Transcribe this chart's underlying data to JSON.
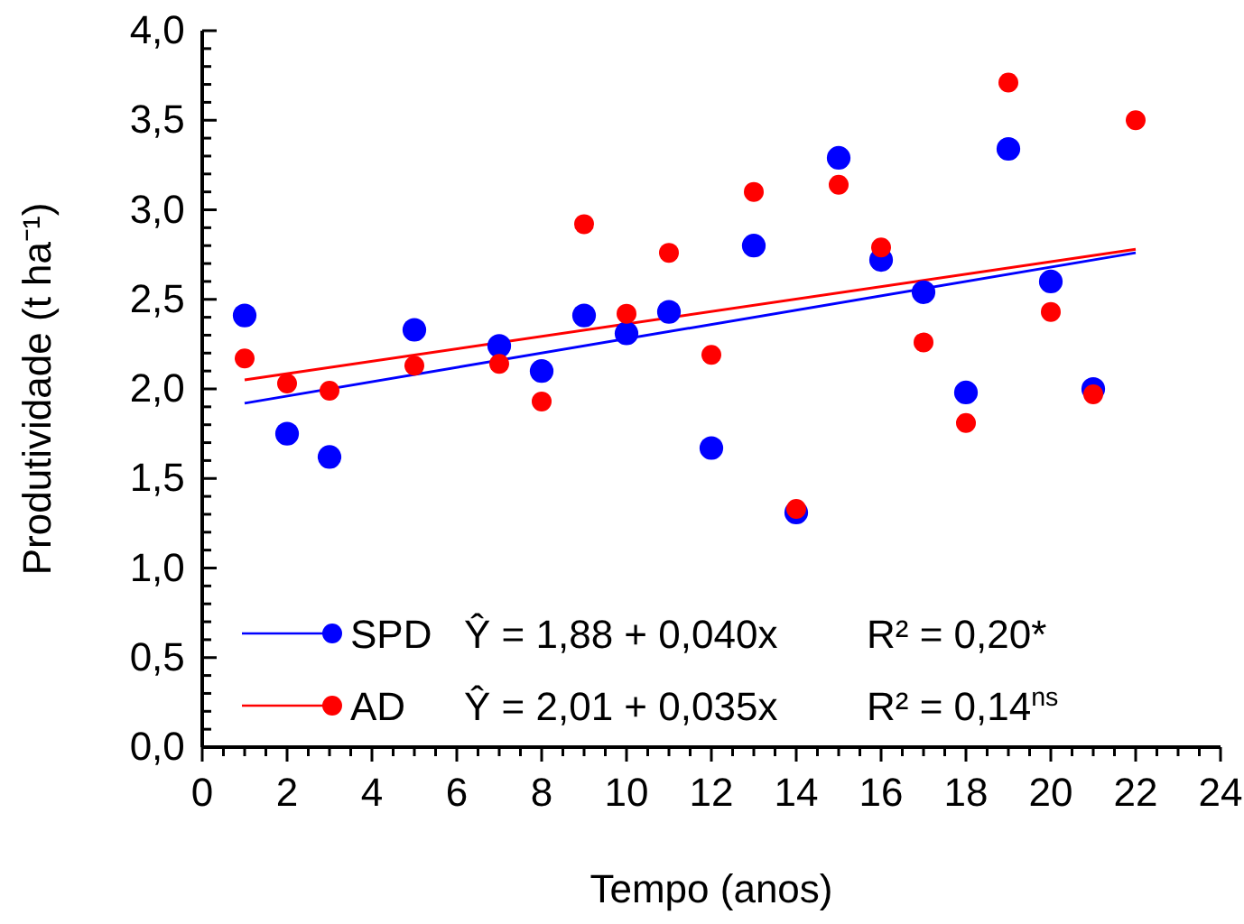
{
  "chart_data": {
    "type": "scatter",
    "xlabel": "Tempo (anos)",
    "ylabel": "Produtividade (t ha⁻¹)",
    "xlim": [
      0,
      24
    ],
    "ylim": [
      0,
      4
    ],
    "xticks": [
      0,
      {
        "value": 0.5,
        "label": null
      },
      {
        "value": 1,
        "label": null
      },
      {
        "value": 1.5,
        "label": null
      },
      2,
      {
        "value": 2.5,
        "label": null
      },
      {
        "value": 3,
        "label": null
      },
      {
        "value": 3.5,
        "label": null
      },
      4,
      {
        "value": 4.5,
        "label": null
      },
      {
        "value": 5,
        "label": null
      },
      {
        "value": 5.5,
        "label": null
      },
      6,
      {
        "value": 6.5,
        "label": null
      },
      {
        "value": 7,
        "label": null
      },
      {
        "value": 7.5,
        "label": null
      },
      8,
      {
        "value": 8.5,
        "label": null
      },
      {
        "value": 9,
        "label": null
      },
      {
        "value": 9.5,
        "label": null
      },
      10,
      {
        "value": 10.5,
        "label": null
      },
      {
        "value": 11,
        "label": null
      },
      {
        "value": 11.5,
        "label": null
      },
      12,
      {
        "value": 12.5,
        "label": null
      },
      {
        "value": 13,
        "label": null
      },
      {
        "value": 13.5,
        "label": null
      },
      14,
      {
        "value": 14.5,
        "label": null
      },
      {
        "value": 15,
        "label": null
      },
      {
        "value": 15.5,
        "label": null
      },
      16,
      {
        "value": 16.5,
        "label": null
      },
      {
        "value": 17,
        "label": null
      },
      {
        "value": 17.5,
        "label": null
      },
      18,
      {
        "value": 18.5,
        "label": null
      },
      {
        "value": 19,
        "label": null
      },
      {
        "value": 19.5,
        "label": null
      },
      20,
      {
        "value": 20.5,
        "label": null
      },
      {
        "value": 21,
        "label": null
      },
      {
        "value": 21.5,
        "label": null
      },
      22,
      {
        "value": 22.5,
        "label": null
      },
      {
        "value": 23,
        "label": null
      },
      {
        "value": 23.5,
        "label": null
      },
      24
    ],
    "yticks": [
      {
        "value": 0,
        "label": "0,0"
      },
      {
        "value": 0.1,
        "label": null
      },
      {
        "value": 0.2,
        "label": null
      },
      {
        "value": 0.3,
        "label": null
      },
      {
        "value": 0.4,
        "label": null
      },
      {
        "value": 0.5,
        "label": "0,5"
      },
      {
        "value": 0.6,
        "label": null
      },
      {
        "value": 0.7,
        "label": null
      },
      {
        "value": 0.8,
        "label": null
      },
      {
        "value": 0.9,
        "label": null
      },
      {
        "value": 1,
        "label": "1,0"
      },
      {
        "value": 1.1,
        "label": null
      },
      {
        "value": 1.2,
        "label": null
      },
      {
        "value": 1.3,
        "label": null
      },
      {
        "value": 1.4,
        "label": null
      },
      {
        "value": 1.5,
        "label": "1,5"
      },
      {
        "value": 1.6,
        "label": null
      },
      {
        "value": 1.7,
        "label": null
      },
      {
        "value": 1.8,
        "label": null
      },
      {
        "value": 1.9,
        "label": null
      },
      {
        "value": 2,
        "label": "2,0"
      },
      {
        "value": 2.1,
        "label": null
      },
      {
        "value": 2.2,
        "label": null
      },
      {
        "value": 2.3,
        "label": null
      },
      {
        "value": 2.4,
        "label": null
      },
      {
        "value": 2.5,
        "label": "2,5"
      },
      {
        "value": 2.6,
        "label": null
      },
      {
        "value": 2.7,
        "label": null
      },
      {
        "value": 2.8,
        "label": null
      },
      {
        "value": 2.9,
        "label": null
      },
      {
        "value": 3,
        "label": "3,0"
      },
      {
        "value": 3.1,
        "label": null
      },
      {
        "value": 3.2,
        "label": null
      },
      {
        "value": 3.3,
        "label": null
      },
      {
        "value": 3.4,
        "label": null
      },
      {
        "value": 3.5,
        "label": "3,5"
      },
      {
        "value": 3.6,
        "label": null
      },
      {
        "value": 3.7,
        "label": null
      },
      {
        "value": 3.8,
        "label": null
      },
      {
        "value": 3.9,
        "label": null
      },
      {
        "value": 4,
        "label": "4,0"
      }
    ],
    "marker": "circle",
    "legend": "bottom left",
    "grid": false,
    "annotations": [
      "Ŷ = 1,88 + 0,040x",
      "R² = 0,20*",
      "Ŷ = 2,01 + 0,035x",
      "R² = 0,14$^{ns}$"
    ],
    "series": [
      {
        "name": "SPD",
        "color": "#0000ff",
        "x": [
          1,
          2,
          3,
          5,
          7,
          8,
          9,
          10,
          11,
          12,
          13,
          14,
          15,
          16,
          17,
          18,
          19,
          20,
          21
        ],
        "values": [
          2.41,
          1.75,
          1.62,
          2.33,
          2.24,
          2.1,
          2.41,
          2.31,
          2.43,
          1.67,
          2.8,
          1.31,
          3.29,
          2.72,
          2.54,
          1.98,
          3.34,
          2.6,
          2.0
        ]
      },
      {
        "name": "AD",
        "color": "#ff0000",
        "x": [
          1,
          2,
          3,
          5,
          7,
          8,
          9,
          10,
          11,
          12,
          13,
          14,
          15,
          16,
          17,
          18,
          19,
          20,
          21,
          22
        ],
        "values": [
          2.17,
          2.03,
          1.99,
          2.13,
          2.14,
          1.93,
          2.92,
          2.42,
          2.76,
          2.19,
          3.1,
          1.33,
          3.14,
          2.79,
          2.26,
          1.81,
          3.71,
          2.43,
          1.97,
          3.5
        ]
      },
      {
        "type": "line",
        "marker": "none",
        "color": "#0000ff",
        "x": [
          1,
          22
        ],
        "values": [
          1.92,
          2.76
        ]
      },
      {
        "type": "line",
        "marker": "none",
        "color": "#ff0000",
        "x": [
          1,
          22
        ],
        "values": [
          2.05,
          2.78
        ]
      }
    ]
  }
}
